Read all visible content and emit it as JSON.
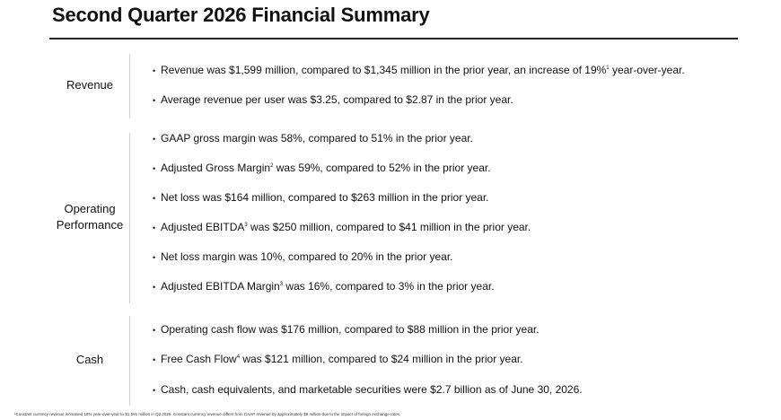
{
  "title": "Second Quarter 2026 Financial Summary",
  "sections": [
    {
      "label": "Revenue",
      "items": [
        {
          "text": "Revenue was $1,599 million, compared to $1,345 million in the prior year, an increase of 19%",
          "sup": "1",
          "after": " year-over-year."
        },
        {
          "text": "Average revenue per user was $3.25, compared to $2.87 in the prior year.",
          "sup": "",
          "after": ""
        }
      ]
    },
    {
      "label": "Operating Performance",
      "items": [
        {
          "text": "GAAP gross margin was 58%, compared to 51% in the prior year.",
          "sup": "",
          "after": ""
        },
        {
          "text": "Adjusted Gross Margin",
          "sup": "2",
          "after": " was 59%, compared to 52% in the prior year."
        },
        {
          "text": "Net loss was $164 million, compared to $263 million in the prior year.",
          "sup": "",
          "after": ""
        },
        {
          "text": "Adjusted EBITDA",
          "sup": "3",
          "after": " was $250 million, compared to $41 million in the prior year."
        },
        {
          "text": "Net loss margin was 10%, compared to 20% in the prior year.",
          "sup": "",
          "after": ""
        },
        {
          "text": "Adjusted EBITDA Margin",
          "sup": "3",
          "after": " was 16%, compared to 3% in the prior year."
        }
      ]
    },
    {
      "label": "Cash",
      "items": [
        {
          "text": "Operating cash flow was $176 million, compared to $88 million in the prior year.",
          "sup": "",
          "after": ""
        },
        {
          "text": "Free Cash Flow",
          "sup": "4",
          "after": " was $121 million, compared to $24 million in the prior year."
        },
        {
          "text": "Cash, cash equivalents, and marketable securities were $2.7 billion as of June 30, 2026.",
          "sup": "",
          "after": ""
        }
      ]
    }
  ],
  "footnote": "¹Constant currency revenue increased 18% year-over-year to $1,591 million in Q2 2026. Constant currency revenue differs from GAAP revenue by approximately $8 million due to the impact of foreign exchange rates.",
  "bullet_glyph": "•"
}
